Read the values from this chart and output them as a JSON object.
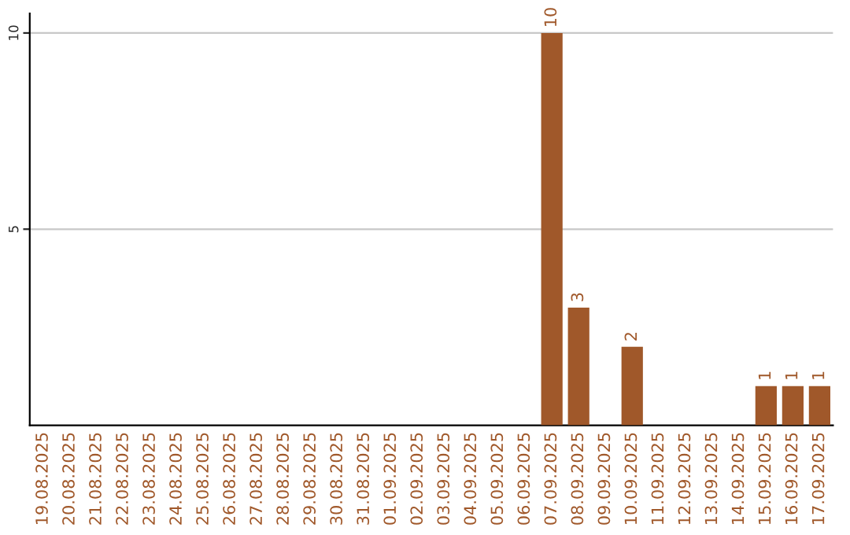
{
  "chart_data": {
    "type": "bar",
    "categories": [
      "19.08.2025",
      "20.08.2025",
      "21.08.2025",
      "22.08.2025",
      "23.08.2025",
      "24.08.2025",
      "25.08.2025",
      "26.08.2025",
      "27.08.2025",
      "28.08.2025",
      "29.08.2025",
      "30.08.2025",
      "31.08.2025",
      "01.09.2025",
      "02.09.2025",
      "03.09.2025",
      "04.09.2025",
      "05.09.2025",
      "06.09.2025",
      "07.09.2025",
      "08.09.2025",
      "09.09.2025",
      "10.09.2025",
      "11.09.2025",
      "12.09.2025",
      "13.09.2025",
      "14.09.2025",
      "15.09.2025",
      "16.09.2025",
      "17.09.2025"
    ],
    "values": [
      0,
      0,
      0,
      0,
      0,
      0,
      0,
      0,
      0,
      0,
      0,
      0,
      0,
      0,
      0,
      0,
      0,
      0,
      0,
      10,
      3,
      0,
      2,
      0,
      0,
      0,
      0,
      1,
      1,
      1
    ],
    "value_labels": [
      null,
      null,
      null,
      null,
      null,
      null,
      null,
      null,
      null,
      null,
      null,
      null,
      null,
      null,
      null,
      null,
      null,
      null,
      null,
      "10",
      "3",
      null,
      "2",
      null,
      null,
      null,
      null,
      "1",
      "1",
      "1"
    ],
    "color": "#a0582a",
    "ylim": [
      0,
      10.5
    ],
    "yticks": [
      5,
      10
    ],
    "grid": "y"
  }
}
